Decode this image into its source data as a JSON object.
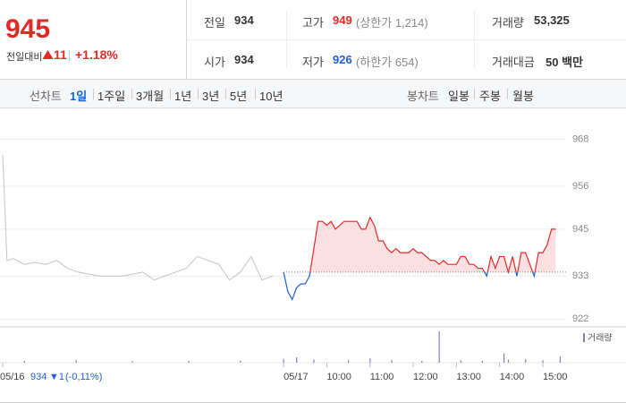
{
  "header": {
    "price": "945",
    "change_label": "전일대비",
    "change": "11",
    "change_pct": "+1.18%"
  },
  "stats": [
    {
      "label": "전일",
      "value": "934"
    },
    {
      "label": "고가",
      "value": "949",
      "note": "(상한가 1,214)"
    },
    {
      "label": "거래량",
      "value": "53,325"
    },
    {
      "label": "시가",
      "value": "934"
    },
    {
      "label": "저가",
      "value": "926",
      "note": "(하한가 654)"
    },
    {
      "label": "거래대금",
      "value": "50 백만"
    }
  ],
  "tabs": {
    "line_label": "선차트",
    "line_items": [
      "1일",
      "1주일",
      "3개월",
      "1년",
      "3년",
      "5년",
      "10년"
    ],
    "selected": "1일",
    "candle_label": "봉차트",
    "candle_items": [
      "일봉",
      "주봉",
      "월봉"
    ]
  },
  "prev_day_info": {
    "price": "934",
    "change": "▼1",
    "change_pct": "(-0,11%)"
  },
  "chart_data": {
    "type": "line",
    "ylim": [
      920,
      975
    ],
    "yticks": [
      968,
      956,
      945,
      933,
      922
    ],
    "xlim": [
      2.5,
      15.6
    ],
    "xticks": [
      {
        "value": 2.5,
        "label": "05/16"
      },
      {
        "value": 9,
        "label": "05/17"
      },
      {
        "value": 10,
        "label": "10:00"
      },
      {
        "value": 11,
        "label": "11:00"
      },
      {
        "value": 12,
        "label": "12:00"
      },
      {
        "value": 13,
        "label": "13:00"
      },
      {
        "value": 14,
        "label": "14:00"
      },
      {
        "value": 15,
        "label": "15:00"
      }
    ],
    "reference_line": 934,
    "series": [
      {
        "color": "#c4c4c4",
        "x": [
          2.5,
          2.6,
          2.75,
          3.0,
          3.25,
          3.5,
          3.75,
          4.0,
          4.25,
          4.5,
          4.75,
          5.0,
          5.25,
          5.5,
          5.75,
          6.0,
          6.25,
          6.5,
          6.75,
          7.0,
          7.25,
          7.5,
          7.75,
          8.0,
          8.25,
          8.5,
          8.75
        ],
        "values": [
          964,
          937,
          937.5,
          936,
          936.5,
          936,
          937,
          935,
          934,
          933.5,
          933,
          933,
          933,
          933.5,
          934,
          932,
          933,
          934,
          935,
          938,
          937,
          936,
          932,
          934,
          938,
          932,
          933
        ]
      },
      {
        "color": "#e22926",
        "below_color": "#1f5fd0",
        "area_color": "#fbe0e2",
        "x": [
          9.0,
          9.1,
          9.2,
          9.3,
          9.4,
          9.5,
          9.6,
          9.7,
          9.8,
          9.9,
          10.0,
          10.1,
          10.2,
          10.3,
          10.4,
          10.5,
          10.6,
          10.7,
          10.8,
          10.9,
          11.0,
          11.1,
          11.2,
          11.3,
          11.4,
          11.5,
          11.6,
          11.7,
          11.8,
          11.9,
          12.0,
          12.1,
          12.2,
          12.3,
          12.4,
          12.5,
          12.6,
          12.7,
          12.8,
          12.9,
          13.0,
          13.1,
          13.2,
          13.3,
          13.4,
          13.5,
          13.6,
          13.7,
          13.8,
          13.9,
          14.0,
          14.1,
          14.2,
          14.3,
          14.4,
          14.5,
          14.6,
          14.7,
          14.8,
          14.9,
          15.0,
          15.1,
          15.2,
          15.3
        ],
        "values": [
          934,
          929,
          927,
          930,
          931,
          931,
          933,
          940,
          947,
          947,
          946,
          947,
          945,
          946,
          947,
          947,
          947,
          947,
          945,
          945,
          948,
          946,
          942,
          942,
          940,
          939,
          940,
          939,
          939,
          939,
          940,
          939,
          939,
          938,
          937,
          937,
          936,
          937,
          936,
          936,
          936,
          938,
          938,
          936,
          936,
          935,
          935,
          933,
          938,
          935,
          938,
          938,
          934,
          938,
          933,
          939,
          939,
          936,
          933,
          939,
          939,
          941,
          945,
          945
        ]
      },
      {
        "name": "거래량",
        "color": "#8a7cc4",
        "axis": "volume",
        "vlim": [
          0,
          100
        ],
        "x": [
          3.0,
          4.2,
          5.5,
          6.8,
          8.0,
          9.0,
          9.3,
          9.7,
          10.5,
          11.0,
          11.5,
          12.2,
          12.6,
          13.1,
          13.6,
          14.1,
          14.2,
          14.6,
          15.0,
          15.4
        ],
        "values": [
          6,
          8,
          5,
          6,
          7,
          12,
          18,
          10,
          8,
          14,
          8,
          6,
          100,
          8,
          6,
          30,
          10,
          12,
          8,
          20
        ]
      }
    ]
  }
}
